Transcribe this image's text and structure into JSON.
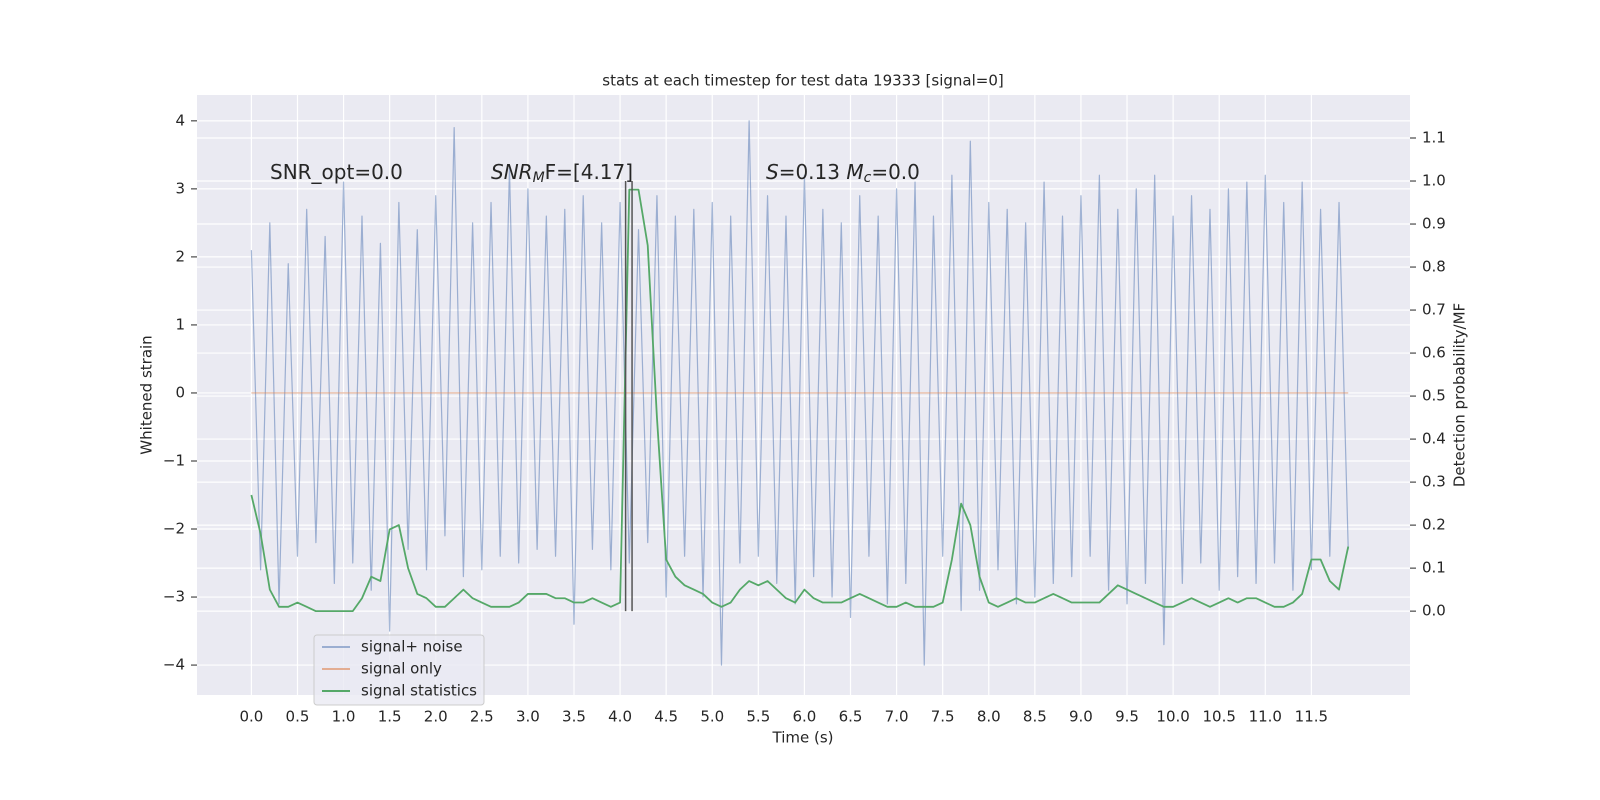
{
  "chart_data": {
    "type": "line",
    "title": "stats at each timestep for test data 19333 [signal=0]",
    "xlabel": "Time (s)",
    "ylabel": "Whitened strain",
    "y2label": "Detection probability/MF",
    "annotations": [
      [
        {
          "text": "SNR_opt=0.0"
        }
      ],
      [
        {
          "text": "SNR",
          "italic": true
        },
        {
          "text": "M",
          "italic": true,
          "sub": true
        },
        {
          "text": "F=[4.17]"
        }
      ],
      [
        {
          "text": "S",
          "italic": true
        },
        {
          "text": "=0.13   "
        },
        {
          "text": "M",
          "italic": true
        },
        {
          "text": "c",
          "italic": true,
          "sub": true
        },
        {
          "text": "=0.0"
        }
      ]
    ],
    "x": [
      0,
      0.1,
      0.2,
      0.3,
      0.4,
      0.5,
      0.6,
      0.7,
      0.8,
      0.9,
      1,
      1.1,
      1.2,
      1.3,
      1.4,
      1.5,
      1.6,
      1.7,
      1.8,
      1.9,
      2,
      2.1,
      2.2,
      2.3,
      2.4,
      2.5,
      2.6,
      2.7,
      2.8,
      2.9,
      3,
      3.1,
      3.2,
      3.3,
      3.4,
      3.5,
      3.6,
      3.7,
      3.8,
      3.9,
      4,
      4.1,
      4.2,
      4.3,
      4.4,
      4.5,
      4.6,
      4.7,
      4.8,
      4.9,
      5,
      5.1,
      5.2,
      5.3,
      5.4,
      5.5,
      5.6,
      5.7,
      5.8,
      5.9,
      6,
      6.1,
      6.2,
      6.3,
      6.4,
      6.5,
      6.6,
      6.7,
      6.8,
      6.9,
      7,
      7.1,
      7.2,
      7.3,
      7.4,
      7.5,
      7.6,
      7.7,
      7.8,
      7.9,
      8,
      8.1,
      8.2,
      8.3,
      8.4,
      8.5,
      8.6,
      8.7,
      8.8,
      8.9,
      9,
      9.1,
      9.2,
      9.3,
      9.4,
      9.5,
      9.6,
      9.7,
      9.8,
      9.9,
      10,
      10.1,
      10.2,
      10.3,
      10.4,
      10.5,
      10.6,
      10.7,
      10.8,
      10.9,
      11,
      11.1,
      11.2,
      11.3,
      11.4,
      11.5,
      11.6,
      11.7,
      11.8,
      11.9
    ],
    "series": [
      {
        "name": "signal+ noise",
        "color": "#4c72b0",
        "opacity": 0.5,
        "axis": "y",
        "values": [
          2.1,
          -2.6,
          2.5,
          -3.1,
          1.9,
          -2.4,
          2.7,
          -2.2,
          2.3,
          -2.8,
          3.1,
          -2.5,
          2.6,
          -2.9,
          2.2,
          -3.5,
          2.8,
          -2.3,
          2.4,
          -2.6,
          2.9,
          -2.1,
          3.9,
          -2.7,
          2.5,
          -2.6,
          2.8,
          -2.4,
          3.3,
          -2.5,
          3.0,
          -2.3,
          2.6,
          -2.4,
          2.7,
          -3.4,
          2.9,
          -2.3,
          2.5,
          -2.6,
          2.8,
          -2.5,
          2.4,
          -2.2,
          2.9,
          -3.0,
          2.6,
          -2.4,
          2.7,
          -3.0,
          2.8,
          -4.0,
          2.6,
          -2.5,
          4.0,
          -2.4,
          2.9,
          -2.8,
          2.6,
          -3.1,
          3.2,
          -2.7,
          2.7,
          -3.0,
          2.5,
          -3.3,
          2.9,
          -2.4,
          2.6,
          -3.1,
          3.0,
          -2.8,
          3.1,
          -4.0,
          2.6,
          -2.4,
          3.2,
          -3.2,
          3.7,
          -2.9,
          2.8,
          -2.6,
          2.7,
          -3.1,
          2.5,
          -3.0,
          3.1,
          -2.8,
          2.6,
          -2.7,
          2.9,
          -2.4,
          3.2,
          -2.9,
          2.7,
          -3.1,
          3.0,
          -2.8,
          3.2,
          -3.7,
          2.6,
          -2.8,
          2.9,
          -2.5,
          2.7,
          -2.9,
          3.0,
          -2.7,
          3.1,
          -2.8,
          3.2,
          -2.5,
          2.8,
          -2.9,
          3.1,
          -2.6,
          2.7,
          -2.4,
          2.8,
          -2.3
        ]
      },
      {
        "name": "signal only",
        "color": "#dd8452",
        "opacity": 0.6,
        "axis": "y",
        "values": [
          0,
          0,
          0,
          0,
          0,
          0,
          0,
          0,
          0,
          0,
          0,
          0,
          0,
          0,
          0,
          0,
          0,
          0,
          0,
          0,
          0,
          0,
          0,
          0,
          0,
          0,
          0,
          0,
          0,
          0,
          0,
          0,
          0,
          0,
          0,
          0,
          0,
          0,
          0,
          0,
          0,
          0,
          0,
          0,
          0,
          0,
          0,
          0,
          0,
          0,
          0,
          0,
          0,
          0,
          0,
          0,
          0,
          0,
          0,
          0,
          0,
          0,
          0,
          0,
          0,
          0,
          0,
          0,
          0,
          0,
          0,
          0,
          0,
          0,
          0,
          0,
          0,
          0,
          0,
          0,
          0,
          0,
          0,
          0,
          0,
          0,
          0,
          0,
          0,
          0,
          0,
          0,
          0,
          0,
          0,
          0,
          0,
          0,
          0,
          0,
          0,
          0,
          0,
          0,
          0,
          0,
          0,
          0,
          0,
          0,
          0,
          0,
          0,
          0,
          0,
          0,
          0,
          0,
          0,
          0
        ]
      },
      {
        "name": "signal statistics",
        "color": "#55a868",
        "opacity": 1,
        "axis": "y2",
        "values": [
          0.27,
          0.18,
          0.05,
          0.01,
          0.01,
          0.02,
          0.01,
          0,
          0,
          0,
          0,
          0,
          0.03,
          0.08,
          0.07,
          0.19,
          0.2,
          0.1,
          0.04,
          0.03,
          0.01,
          0.01,
          0.03,
          0.05,
          0.03,
          0.02,
          0.01,
          0.01,
          0.01,
          0.02,
          0.04,
          0.04,
          0.04,
          0.03,
          0.03,
          0.02,
          0.02,
          0.03,
          0.02,
          0.01,
          0.02,
          0.98,
          0.98,
          0.85,
          0.45,
          0.12,
          0.08,
          0.06,
          0.05,
          0.04,
          0.02,
          0.01,
          0.02,
          0.05,
          0.07,
          0.06,
          0.07,
          0.05,
          0.03,
          0.02,
          0.05,
          0.03,
          0.02,
          0.02,
          0.02,
          0.03,
          0.04,
          0.03,
          0.02,
          0.01,
          0.01,
          0.02,
          0.01,
          0.01,
          0.01,
          0.02,
          0.12,
          0.25,
          0.2,
          0.08,
          0.02,
          0.01,
          0.02,
          0.03,
          0.02,
          0.02,
          0.03,
          0.04,
          0.03,
          0.02,
          0.02,
          0.02,
          0.02,
          0.04,
          0.06,
          0.05,
          0.04,
          0.03,
          0.02,
          0.01,
          0.01,
          0.02,
          0.03,
          0.02,
          0.01,
          0.02,
          0.03,
          0.02,
          0.03,
          0.03,
          0.02,
          0.01,
          0.01,
          0.02,
          0.04,
          0.12,
          0.12,
          0.07,
          0.05,
          0.15
        ]
      }
    ],
    "vlines": [
      {
        "x": 4.06,
        "ymin": 0,
        "ymax": 1.0,
        "color": "#555555"
      },
      {
        "x": 4.13,
        "ymin": 0,
        "ymax": 1.0,
        "color": "#555555"
      }
    ],
    "xlim": [
      -0.59,
      12.57
    ],
    "ylim": [
      -4.44,
      4.38
    ],
    "y2lim": [
      -0.195,
      1.2
    ],
    "xticks": [
      {
        "value": 0,
        "label": "0.0"
      },
      {
        "value": 0.5,
        "label": "0.5"
      },
      {
        "value": 1,
        "label": "1.0"
      },
      {
        "value": 1.5,
        "label": "1.5"
      },
      {
        "value": 2,
        "label": "2.0"
      },
      {
        "value": 2.5,
        "label": "2.5"
      },
      {
        "value": 3,
        "label": "3.0"
      },
      {
        "value": 3.5,
        "label": "3.5"
      },
      {
        "value": 4,
        "label": "4.0"
      },
      {
        "value": 4.5,
        "label": "4.5"
      },
      {
        "value": 5,
        "label": "5.0"
      },
      {
        "value": 5.5,
        "label": "5.5"
      },
      {
        "value": 6,
        "label": "6.0"
      },
      {
        "value": 6.5,
        "label": "6.5"
      },
      {
        "value": 7,
        "label": "7.0"
      },
      {
        "value": 7.5,
        "label": "7.5"
      },
      {
        "value": 8,
        "label": "8.0"
      },
      {
        "value": 8.5,
        "label": "8.5"
      },
      {
        "value": 9,
        "label": "9.0"
      },
      {
        "value": 9.5,
        "label": "9.5"
      },
      {
        "value": 10,
        "label": "10.0"
      },
      {
        "value": 10.5,
        "label": "10.5"
      },
      {
        "value": 11,
        "label": "11.0"
      },
      {
        "value": 11.5,
        "label": "11.5"
      }
    ],
    "yticks": [
      {
        "value": -4,
        "label": "−4"
      },
      {
        "value": -3,
        "label": "−3"
      },
      {
        "value": -2,
        "label": "−2"
      },
      {
        "value": -1,
        "label": "−1"
      },
      0,
      1,
      2,
      3,
      4
    ],
    "y2ticks": [
      {
        "value": 0,
        "label": "0.0"
      },
      {
        "value": 0.1,
        "label": "0.1"
      },
      {
        "value": 0.2,
        "label": "0.2"
      },
      {
        "value": 0.3,
        "label": "0.3"
      },
      {
        "value": 0.4,
        "label": "0.4"
      },
      {
        "value": 0.5,
        "label": "0.5"
      },
      {
        "value": 0.6,
        "label": "0.6"
      },
      {
        "value": 0.7,
        "label": "0.7"
      },
      {
        "value": 0.8,
        "label": "0.8"
      },
      {
        "value": 0.9,
        "label": "0.9"
      },
      {
        "value": 1.0,
        "label": "1.0"
      },
      {
        "value": 1.1,
        "label": "1.1"
      }
    ],
    "grid": true,
    "background": "#eaeaf2",
    "legend": "lower left"
  }
}
